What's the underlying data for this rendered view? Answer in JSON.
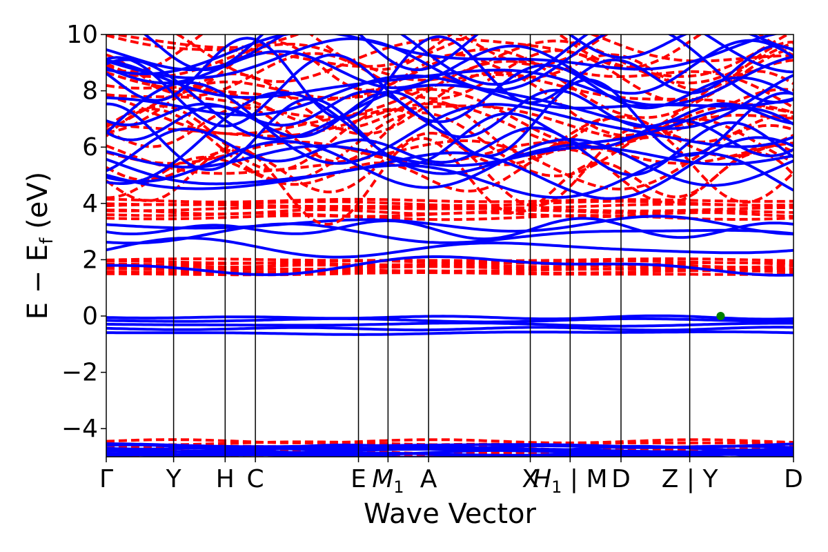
{
  "chart_data": {
    "type": "line",
    "xlabel": "Wave Vector",
    "ylabel": "E − E",
    "ylabel_sub": "f",
    "ylabel_unit": "(eV)",
    "ylim": [
      -5,
      10
    ],
    "y_ticks": [
      -4,
      -2,
      0,
      2,
      4,
      6,
      8,
      10
    ],
    "y_tick_labels": [
      "−4",
      "−2",
      "0",
      "2",
      "4",
      "6",
      "8",
      "10"
    ],
    "k_points": [
      {
        "label": "Γ",
        "x": 0.0
      },
      {
        "label": "Y",
        "x": 0.098
      },
      {
        "label": "H",
        "x": 0.173
      },
      {
        "label": "C",
        "x": 0.217
      },
      {
        "label": "E",
        "x": 0.367
      },
      {
        "label": "M",
        "sub": "1",
        "x": 0.41
      },
      {
        "label": "A",
        "x": 0.469
      },
      {
        "label": "X",
        "x": 0.617
      },
      {
        "label": "H",
        "sub": "1",
        "x": 0.675,
        "prefix_bar": false,
        "suffix": " | M"
      },
      {
        "label": "D",
        "x": 0.749
      },
      {
        "label": "Z | Y",
        "x": 0.849
      },
      {
        "label": "D",
        "x": 1.0
      }
    ],
    "series": [
      {
        "style": "solid",
        "color": "#0000ff"
      },
      {
        "style": "dashed",
        "color": "#ff0000"
      }
    ],
    "marker": {
      "x": 0.894,
      "y": 0.0,
      "color": "#008000"
    },
    "bands_description": "Blue solid: valence flat bands near 0 to -0.6 eV, conduction bands near 1.8-3.3 eV and dense manifold above 4.5 eV, deep bands near -4.5 eV. Red dashed: flat manifolds near 1.5-2.0 eV and 3.5-4.2 eV, dense bands above 5 eV, deep bands near -4.3 eV."
  }
}
